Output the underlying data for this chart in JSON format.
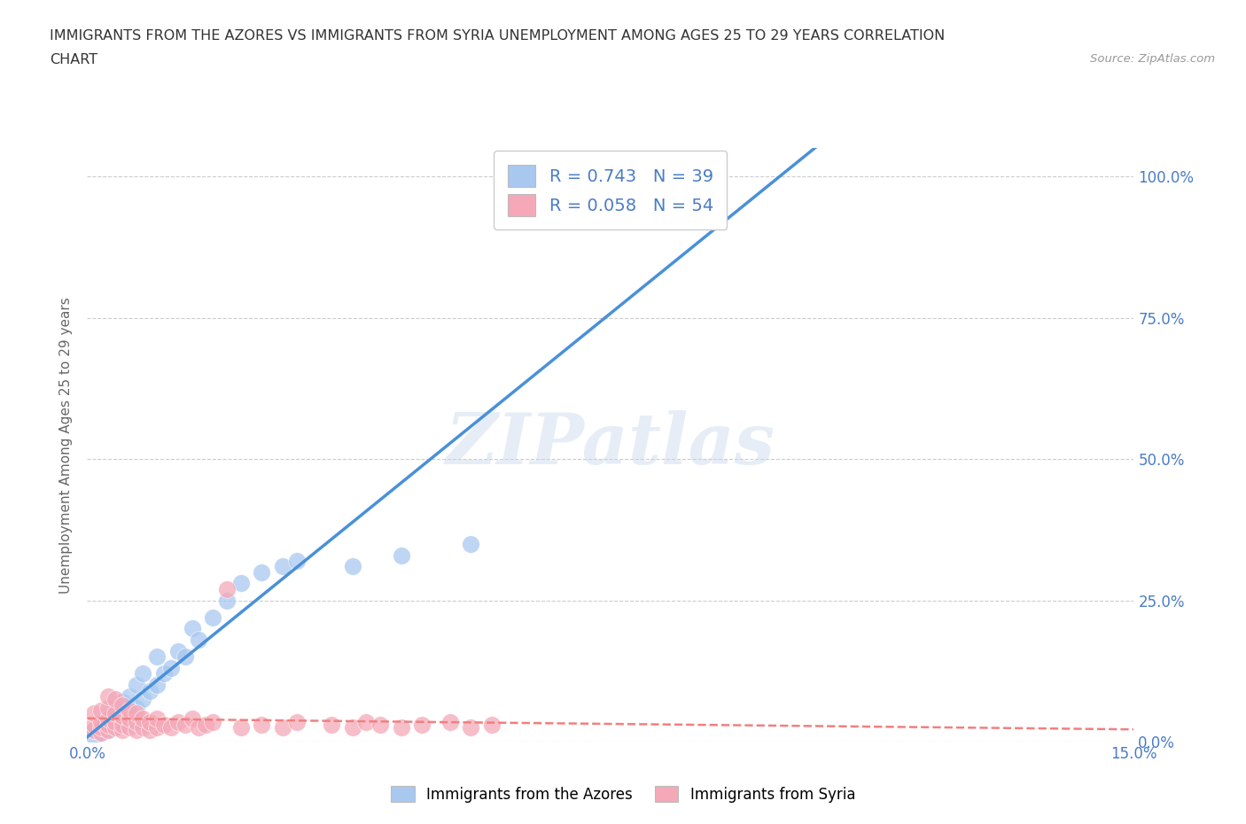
{
  "title_line1": "IMMIGRANTS FROM THE AZORES VS IMMIGRANTS FROM SYRIA UNEMPLOYMENT AMONG AGES 25 TO 29 YEARS CORRELATION",
  "title_line2": "CHART",
  "source": "Source: ZipAtlas.com",
  "ylabel": "Unemployment Among Ages 25 to 29 years",
  "xlim": [
    0.0,
    0.15
  ],
  "ylim": [
    0.0,
    1.05
  ],
  "azores_color": "#a8c8f0",
  "syria_color": "#f4a8b8",
  "azores_R": 0.743,
  "azores_N": 39,
  "syria_R": 0.058,
  "syria_N": 54,
  "legend_label_azores": "Immigrants from the Azores",
  "legend_label_syria": "Immigrants from Syria",
  "watermark": "ZIPatlas",
  "legend_text_color": "#4a7cc7",
  "azores_scatter_x": [
    0.001,
    0.001,
    0.002,
    0.002,
    0.002,
    0.003,
    0.003,
    0.003,
    0.004,
    0.004,
    0.004,
    0.005,
    0.005,
    0.005,
    0.006,
    0.006,
    0.007,
    0.007,
    0.008,
    0.008,
    0.009,
    0.01,
    0.01,
    0.011,
    0.012,
    0.013,
    0.014,
    0.015,
    0.016,
    0.018,
    0.02,
    0.022,
    0.025,
    0.028,
    0.03,
    0.038,
    0.045,
    0.055,
    0.075
  ],
  "azores_scatter_y": [
    0.01,
    0.02,
    0.015,
    0.025,
    0.03,
    0.02,
    0.03,
    0.04,
    0.025,
    0.035,
    0.055,
    0.03,
    0.05,
    0.07,
    0.05,
    0.08,
    0.06,
    0.1,
    0.075,
    0.12,
    0.09,
    0.1,
    0.15,
    0.12,
    0.13,
    0.16,
    0.15,
    0.2,
    0.18,
    0.22,
    0.25,
    0.28,
    0.3,
    0.31,
    0.32,
    0.31,
    0.33,
    0.35,
    0.95
  ],
  "syria_scatter_x": [
    0.001,
    0.001,
    0.001,
    0.002,
    0.002,
    0.002,
    0.002,
    0.003,
    0.003,
    0.003,
    0.003,
    0.003,
    0.004,
    0.004,
    0.004,
    0.004,
    0.005,
    0.005,
    0.005,
    0.005,
    0.006,
    0.006,
    0.006,
    0.007,
    0.007,
    0.007,
    0.008,
    0.008,
    0.009,
    0.009,
    0.01,
    0.01,
    0.011,
    0.012,
    0.013,
    0.014,
    0.015,
    0.016,
    0.017,
    0.018,
    0.02,
    0.022,
    0.025,
    0.028,
    0.03,
    0.035,
    0.038,
    0.04,
    0.042,
    0.045,
    0.048,
    0.052,
    0.055,
    0.058
  ],
  "syria_scatter_y": [
    0.02,
    0.03,
    0.05,
    0.015,
    0.025,
    0.035,
    0.055,
    0.02,
    0.03,
    0.04,
    0.06,
    0.08,
    0.025,
    0.035,
    0.05,
    0.075,
    0.02,
    0.03,
    0.045,
    0.065,
    0.025,
    0.04,
    0.055,
    0.02,
    0.035,
    0.05,
    0.025,
    0.04,
    0.02,
    0.035,
    0.025,
    0.04,
    0.03,
    0.025,
    0.035,
    0.03,
    0.04,
    0.025,
    0.03,
    0.035,
    0.27,
    0.025,
    0.03,
    0.025,
    0.035,
    0.03,
    0.025,
    0.035,
    0.03,
    0.025,
    0.03,
    0.035,
    0.025,
    0.03
  ],
  "azores_line_color": "#4a90d9",
  "syria_line_color": "#f08080",
  "grid_color": "#cccccc",
  "background_color": "#ffffff",
  "plot_bg_color": "#ffffff"
}
